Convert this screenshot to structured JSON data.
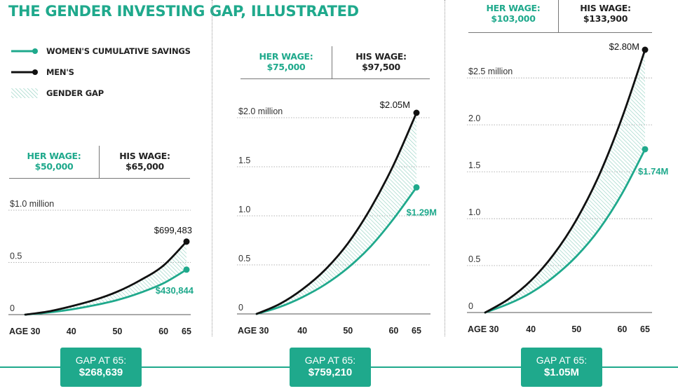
{
  "title": "THE GENDER INVESTING GAP, ILLUSTRATED",
  "legend": [
    {
      "label": "WOMEN'S CUMULATIVE SAVINGS",
      "type": "women"
    },
    {
      "label": "MEN'S",
      "type": "men"
    },
    {
      "label": "GENDER GAP",
      "type": "gap"
    }
  ],
  "colors": {
    "women": "#1fa98c",
    "men": "#111111",
    "gap": "#8fcfbf",
    "grid": "#9a9a9a",
    "axis": "#555555"
  },
  "x_axis": {
    "ticks": [
      30,
      40,
      50,
      60,
      65
    ],
    "tick_labels": [
      "AGE 30",
      "40",
      "50",
      "60",
      "65"
    ]
  },
  "panels": [
    {
      "her_wage_label": "HER WAGE:",
      "her_wage": "$50,000",
      "his_wage_label": "HIS WAGE:",
      "his_wage": "$65,000",
      "gap_label": "GAP AT 65:",
      "gap_value": "$268,639"
    },
    {
      "her_wage_label": "HER WAGE:",
      "her_wage": "$75,000",
      "his_wage_label": "HIS WAGE:",
      "his_wage": "$97,500",
      "gap_label": "GAP AT 65:",
      "gap_value": "$759,210"
    },
    {
      "her_wage_label": "HER WAGE:",
      "her_wage": "$103,000",
      "his_wage_label": "HIS WAGE:",
      "his_wage": "$133,900",
      "gap_label": "GAP AT 65:",
      "gap_value": "$1.05M"
    }
  ],
  "chart_data": [
    {
      "type": "line",
      "x": [
        30,
        35,
        40,
        45,
        50,
        55,
        60,
        65
      ],
      "ylim": [
        0,
        1.0
      ],
      "y_ticks": [
        0,
        0.5,
        1.0
      ],
      "y_tick_labels": [
        "0",
        "0.5",
        "$1.0 million"
      ],
      "series": [
        {
          "key": "men",
          "values": [
            0,
            0.03,
            0.08,
            0.14,
            0.22,
            0.33,
            0.47,
            0.699483
          ],
          "end_label": "$699,483"
        },
        {
          "key": "women",
          "values": [
            0,
            0.02,
            0.05,
            0.09,
            0.14,
            0.21,
            0.3,
            0.430844
          ],
          "end_label": "$430,844"
        }
      ]
    },
    {
      "type": "line",
      "x": [
        30,
        35,
        40,
        45,
        50,
        55,
        60,
        65
      ],
      "ylim": [
        0,
        2.0
      ],
      "y_ticks": [
        0,
        0.5,
        1.0,
        1.5,
        2.0
      ],
      "y_tick_labels": [
        "0",
        "0.5",
        "1.0",
        "1.5",
        "$2.0 million"
      ],
      "series": [
        {
          "key": "men",
          "values": [
            0,
            0.1,
            0.25,
            0.45,
            0.72,
            1.08,
            1.52,
            2.05
          ],
          "end_label": "$2.05M"
        },
        {
          "key": "women",
          "values": [
            0,
            0.07,
            0.17,
            0.3,
            0.47,
            0.69,
            0.97,
            1.29
          ],
          "end_label": "$1.29M"
        }
      ]
    },
    {
      "type": "line",
      "x": [
        30,
        35,
        40,
        45,
        50,
        55,
        60,
        65
      ],
      "ylim": [
        0,
        2.8
      ],
      "y_ticks": [
        0,
        0.5,
        1.0,
        1.5,
        2.0,
        2.5
      ],
      "y_tick_labels": [
        "0",
        "0.5",
        "1.0",
        "1.5",
        "2.0",
        "$2.5 million"
      ],
      "series": [
        {
          "key": "men",
          "values": [
            0,
            0.14,
            0.34,
            0.62,
            0.99,
            1.47,
            2.08,
            2.8
          ],
          "end_label": "$2.80M"
        },
        {
          "key": "women",
          "values": [
            0,
            0.09,
            0.21,
            0.38,
            0.6,
            0.89,
            1.27,
            1.74
          ],
          "end_label": "$1.74M"
        }
      ]
    }
  ]
}
